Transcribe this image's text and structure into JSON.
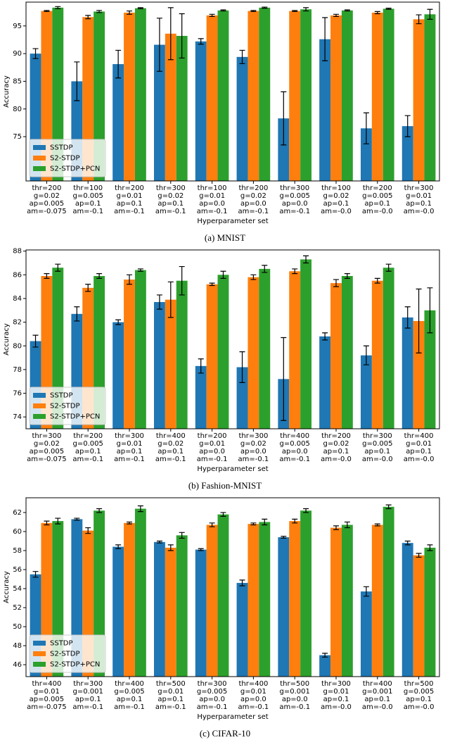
{
  "chart_data": [
    {
      "type": "bar",
      "ylabel": "Accuracy",
      "xlabel": "Hyperparameter set",
      "caption": "(a) MNIST",
      "legend": "lower left",
      "categories": [
        [
          "thr=200",
          "g=0.02",
          "ap=0.005",
          "am=-0.075"
        ],
        [
          "thr=100",
          "g=0.005",
          "ap=0.1",
          "am=-0.1"
        ],
        [
          "thr=200",
          "g=0.01",
          "ap=0.1",
          "am=-0.1"
        ],
        [
          "thr=300",
          "g=0.02",
          "ap=0.1",
          "am=-0.1"
        ],
        [
          "thr=100",
          "g=0.01",
          "ap=0.0",
          "am=-0.1"
        ],
        [
          "thr=200",
          "g=0.02",
          "ap=0.0",
          "am=-0.1"
        ],
        [
          "thr=300",
          "g=0.005",
          "ap=0.0",
          "am=-0.1"
        ],
        [
          "thr=100",
          "g=0.02",
          "ap=0.1",
          "am=-0.0"
        ],
        [
          "thr=200",
          "g=0.005",
          "ap=0.1",
          "am=-0.0"
        ],
        [
          "thr=300",
          "g=0.01",
          "ap=0.1",
          "am=-0.0"
        ]
      ],
      "series": [
        {
          "name": "SSTDP",
          "color": "#1f77b4",
          "values": [
            90.0,
            85.0,
            88.1,
            91.6,
            92.2,
            89.4,
            78.3,
            92.6,
            76.5,
            76.9
          ],
          "errors": [
            0.9,
            3.5,
            2.5,
            4.8,
            0.5,
            1.2,
            4.8,
            3.9,
            2.8,
            1.9
          ]
        },
        {
          "name": "S2-STDP",
          "color": "#ff7f0e",
          "values": [
            97.7,
            96.6,
            97.4,
            93.6,
            96.9,
            97.7,
            97.7,
            96.9,
            97.4,
            96.2
          ],
          "errors": [
            0.1,
            0.3,
            0.3,
            4.7,
            0.2,
            0.1,
            0.1,
            0.2,
            0.2,
            0.8
          ]
        },
        {
          "name": "S2-STDP+PCN",
          "color": "#2ca02c",
          "values": [
            98.3,
            97.6,
            98.2,
            93.2,
            97.8,
            98.3,
            98.0,
            97.8,
            98.1,
            97.1
          ],
          "errors": [
            0.2,
            0.2,
            0.1,
            4.0,
            0.1,
            0.1,
            0.3,
            0.1,
            0.1,
            0.9
          ]
        }
      ],
      "ylim": [
        67,
        99.3
      ],
      "yticks": [
        75,
        80,
        85,
        90,
        95
      ]
    },
    {
      "type": "bar",
      "ylabel": "Accuracy",
      "xlabel": "Hyperparameter set",
      "caption": "(b) Fashion-MNIST",
      "legend": "lower left",
      "categories": [
        [
          "thr=300",
          "g=0.02",
          "ap=0.005",
          "am=-0.075"
        ],
        [
          "thr=200",
          "g=0.005",
          "ap=0.1",
          "am=-0.1"
        ],
        [
          "thr=300",
          "g=0.01",
          "ap=0.1",
          "am=-0.1"
        ],
        [
          "thr=400",
          "g=0.02",
          "ap=0.1",
          "am=-0.1"
        ],
        [
          "thr=200",
          "g=0.01",
          "ap=0.0",
          "am=-0.1"
        ],
        [
          "thr=300",
          "g=0.02",
          "ap=0.0",
          "am=-0.1"
        ],
        [
          "thr=400",
          "g=0.005",
          "ap=0.0",
          "am=-0.1"
        ],
        [
          "thr=200",
          "g=0.02",
          "ap=0.1",
          "am=-0.0"
        ],
        [
          "thr=300",
          "g=0.005",
          "ap=0.1",
          "am=-0.0"
        ],
        [
          "thr=400",
          "g=0.01",
          "ap=0.1",
          "am=-0.0"
        ]
      ],
      "series": [
        {
          "name": "SSTDP",
          "color": "#1f77b4",
          "values": [
            80.4,
            82.7,
            82.0,
            83.7,
            78.3,
            78.2,
            77.2,
            80.8,
            79.2,
            82.4
          ],
          "errors": [
            0.5,
            0.6,
            0.2,
            0.6,
            0.6,
            1.3,
            3.5,
            0.3,
            0.8,
            0.9
          ]
        },
        {
          "name": "S2-STDP",
          "color": "#ff7f0e",
          "values": [
            85.9,
            84.9,
            85.6,
            83.9,
            85.2,
            85.8,
            86.3,
            85.3,
            85.5,
            82.1
          ],
          "errors": [
            0.2,
            0.3,
            0.4,
            1.5,
            0.1,
            0.2,
            0.2,
            0.3,
            0.2,
            2.7
          ]
        },
        {
          "name": "S2-STDP+PCN",
          "color": "#2ca02c",
          "values": [
            86.6,
            85.9,
            86.4,
            85.5,
            86.0,
            86.5,
            87.3,
            85.9,
            86.6,
            83.0
          ],
          "errors": [
            0.3,
            0.2,
            0.1,
            1.2,
            0.3,
            0.3,
            0.3,
            0.2,
            0.3,
            1.9
          ]
        }
      ],
      "ylim": [
        73,
        88.1
      ],
      "yticks": [
        74,
        76,
        78,
        80,
        82,
        84,
        86,
        88
      ]
    },
    {
      "type": "bar",
      "ylabel": "Accuracy",
      "xlabel": "Hyperparameter set",
      "caption": "(c) CIFAR-10",
      "legend": "lower left",
      "categories": [
        [
          "thr=400",
          "g=0.01",
          "ap=0.005",
          "am=-0.075"
        ],
        [
          "thr=300",
          "g=0.001",
          "ap=0.1",
          "am=-0.1"
        ],
        [
          "thr=400",
          "g=0.005",
          "ap=0.1",
          "am=-0.1"
        ],
        [
          "thr=500",
          "g=0.01",
          "ap=0.1",
          "am=-0.1"
        ],
        [
          "thr=300",
          "g=0.005",
          "ap=0.0",
          "am=-0.1"
        ],
        [
          "thr=400",
          "g=0.01",
          "ap=0.0",
          "am=-0.1"
        ],
        [
          "thr=500",
          "g=0.001",
          "ap=0.0",
          "am=-0.1"
        ],
        [
          "thr=300",
          "g=0.01",
          "ap=0.1",
          "am=-0.0"
        ],
        [
          "thr=400",
          "g=0.001",
          "ap=0.1",
          "am=-0.0"
        ],
        [
          "thr=500",
          "g=0.005",
          "ap=0.1",
          "am=-0.0"
        ]
      ],
      "series": [
        {
          "name": "SSTDP",
          "color": "#1f77b4",
          "values": [
            55.5,
            61.3,
            58.4,
            58.9,
            58.1,
            54.6,
            59.4,
            47.0,
            53.7,
            58.8
          ],
          "errors": [
            0.3,
            0.1,
            0.2,
            0.1,
            0.1,
            0.3,
            0.1,
            0.2,
            0.5,
            0.2
          ]
        },
        {
          "name": "S2-STDP",
          "color": "#ff7f0e",
          "values": [
            60.9,
            60.1,
            60.9,
            58.3,
            60.7,
            60.8,
            61.1,
            60.4,
            60.7,
            57.5
          ],
          "errors": [
            0.2,
            0.3,
            0.1,
            0.3,
            0.2,
            0.1,
            0.2,
            0.2,
            0.1,
            0.2
          ]
        },
        {
          "name": "S2-STDP+PCN",
          "color": "#2ca02c",
          "values": [
            61.1,
            62.2,
            62.4,
            59.6,
            61.8,
            61.0,
            62.2,
            60.7,
            62.6,
            58.3
          ],
          "errors": [
            0.3,
            0.2,
            0.3,
            0.3,
            0.2,
            0.3,
            0.2,
            0.3,
            0.2,
            0.3
          ]
        }
      ],
      "ylim": [
        44.75,
        63.55
      ],
      "yticks": [
        46,
        48,
        50,
        52,
        54,
        56,
        58,
        60,
        62
      ]
    }
  ]
}
